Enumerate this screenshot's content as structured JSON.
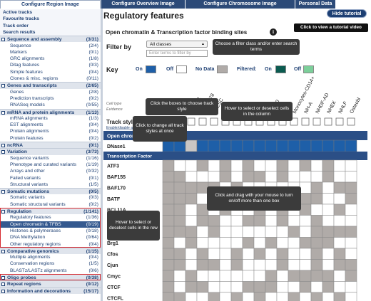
{
  "tabs": [
    "Configure Region Image",
    "Configure Overview Image",
    "Configure Chromosome Image",
    "Personal Data"
  ],
  "sidebar": {
    "links": [
      "Active tracks",
      "Favourite tracks",
      "Track order",
      "Search results"
    ],
    "sections": [
      {
        "title": "Sequence and assembly",
        "count": "(3/31)",
        "items": [
          {
            "label": "Sequence",
            "count": "(2/4)"
          },
          {
            "label": "Markers",
            "count": "(0/1)"
          },
          {
            "label": "GRC alignments",
            "count": "(1/8)"
          },
          {
            "label": "Ditag features",
            "count": "(0/3)"
          },
          {
            "label": "Simple features",
            "count": "(0/4)"
          },
          {
            "label": "Clones & misc. regions",
            "count": "(0/11)"
          }
        ]
      },
      {
        "title": "Genes and transcripts",
        "count": "(2/65)",
        "items": [
          {
            "label": "Genes",
            "count": "(2/8)"
          },
          {
            "label": "Prediction transcripts",
            "count": "(0/2)"
          },
          {
            "label": "RNASeq models",
            "count": "(0/55)"
          }
        ]
      },
      {
        "title": "mRNA and protein alignments",
        "count": "(1/13)",
        "items": [
          {
            "label": "mRNA alignments",
            "count": "(1/3)"
          },
          {
            "label": "EST alignments",
            "count": "(0/4)"
          },
          {
            "label": "Protein alignments",
            "count": "(0/4)"
          },
          {
            "label": "Protein features",
            "count": "(0/2)"
          }
        ]
      },
      {
        "title": "ncRNA",
        "count": "(0/1)",
        "items": []
      },
      {
        "title": "Variation",
        "count": "(3/73)",
        "items": [
          {
            "label": "Sequence variants",
            "count": "(1/16)"
          },
          {
            "label": "Phenotype and curated variants",
            "count": "(1/19)"
          },
          {
            "label": "Arrays and other",
            "count": "(0/32)"
          },
          {
            "label": "Failed variants",
            "count": "(0/1)"
          },
          {
            "label": "Structural variants",
            "count": "(1/5)"
          }
        ]
      },
      {
        "title": "Somatic mutations",
        "count": "(0/5)",
        "items": [
          {
            "label": "Somatic variants",
            "count": "(0/3)"
          },
          {
            "label": "Somatic structural variants",
            "count": "(0/2)"
          }
        ]
      },
      {
        "title": "Regulation",
        "count": "(1/141)",
        "items": [
          {
            "label": "Regulatory features",
            "count": "(1/36)"
          },
          {
            "label": "Open chromatin & TFBS",
            "count": "(0/19)"
          },
          {
            "label": "Histones & polymerases",
            "count": "(0/18)"
          },
          {
            "label": "DNA Methylation",
            "count": "(0/64)"
          },
          {
            "label": "Other regulatory regions",
            "count": "(0/4)"
          }
        ]
      },
      {
        "title": "Comparative genomics",
        "count": "(1/15)",
        "items": [
          {
            "label": "Multiple alignments",
            "count": "(0/4)"
          },
          {
            "label": "Conservation regions",
            "count": "(1/5)"
          },
          {
            "label": "BLASTz/LASTz alignments",
            "count": "(0/6)"
          }
        ]
      },
      {
        "title": "Oligo probes",
        "count": "(0/38)",
        "items": []
      },
      {
        "title": "Repeat regions",
        "count": "(0/12)",
        "items": []
      },
      {
        "title": "Information and decorations",
        "count": "(15/17)",
        "items": []
      }
    ]
  },
  "main": {
    "title": "Regulatory features",
    "hide_button": "Hide tutorial",
    "tutorial_link": "Click to view a tutorial video",
    "subtitle": "Open chromatin & Transcription factor binding sites",
    "filter": {
      "label": "Filter by",
      "select": "All classes",
      "placeholder": "Enter terms to filter by"
    },
    "key": {
      "label": "Key",
      "on": "On",
      "off": "Off",
      "no_data": "No Data",
      "filtered": "Filtered:",
      "filtered_on": "On",
      "filtered_off": "Off"
    },
    "grid": {
      "cell_type": "Cell type",
      "evidence": "Evidence",
      "track_style": "Track style:",
      "enable_all": "Enable/disable all",
      "columns": [
        "A549",
        "DND-41",
        "GM12878",
        "H1ESC",
        "IMR90",
        "K562",
        "Monocytes-CD14+",
        "NH-A",
        "NHDF-AD",
        "NHEK",
        "NHLF",
        "Osteobl"
      ],
      "group_open": "Open chromatin",
      "open_rows": [
        "DNase1"
      ],
      "group_tf": "Transcription Factor",
      "tf_rows": [
        "ATF3",
        "BAF155",
        "BAF170",
        "BATF",
        "BCL11A",
        "Brg1",
        "Cfos",
        "Cjun",
        "Cmyc",
        "CTCF",
        "CTCFL"
      ]
    },
    "tooltips": [
      "Choose a filter class and/or enter search terms",
      "Click the boxes to choose track style",
      "Hover to select or deselect cells in the column",
      "Click to change all track styles at once",
      "Click and drag with your mouse to turn on/off more than one box",
      "Hover to select or deselect cells in the row"
    ]
  }
}
